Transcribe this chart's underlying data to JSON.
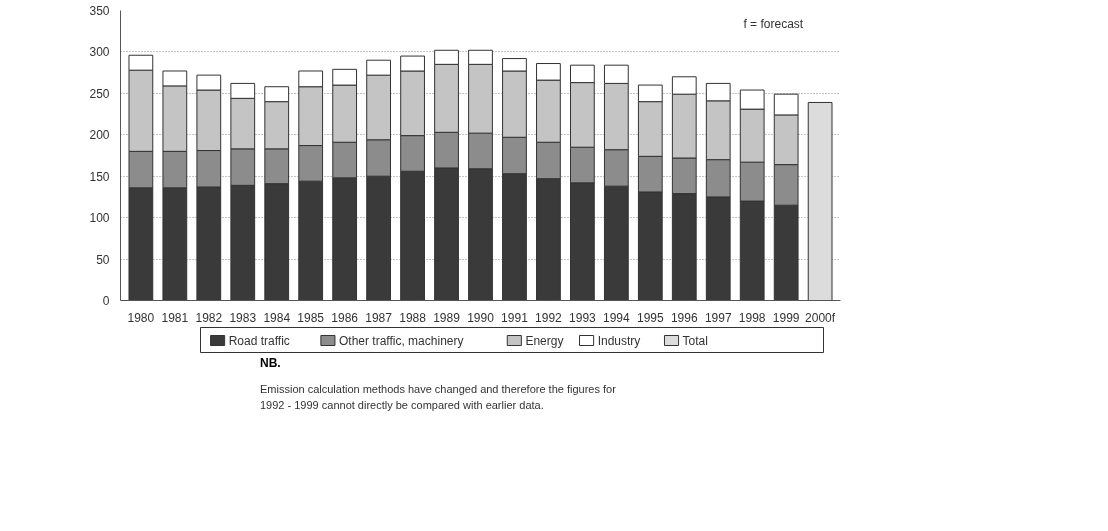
{
  "chart_data": {
    "type": "bar",
    "stacked": true,
    "categories": [
      "1980",
      "1981",
      "1982",
      "1983",
      "1984",
      "1985",
      "1986",
      "1987",
      "1988",
      "1989",
      "1990",
      "1991",
      "1992",
      "1993",
      "1994",
      "1995",
      "1996",
      "1997",
      "1998",
      "1999",
      "2000f"
    ],
    "series": [
      {
        "name": "Road traffic",
        "color": "#3a3a3a",
        "values": [
          136,
          136,
          137,
          139,
          141,
          144,
          148,
          150,
          156,
          160,
          159,
          153,
          147,
          142,
          138,
          131,
          129,
          125,
          120,
          115,
          null
        ]
      },
      {
        "name": "Other traffic, machinery",
        "color": "#8c8c8c",
        "values": [
          44,
          44,
          44,
          44,
          42,
          43,
          43,
          44,
          43,
          43,
          43,
          44,
          44,
          43,
          44,
          43,
          43,
          45,
          47,
          49,
          null
        ]
      },
      {
        "name": "Energy",
        "color": "#c4c4c4",
        "values": [
          98,
          79,
          73,
          61,
          57,
          71,
          69,
          78,
          78,
          82,
          83,
          80,
          75,
          78,
          80,
          66,
          77,
          71,
          64,
          60,
          null
        ]
      },
      {
        "name": "Industry",
        "color": "#ffffff",
        "values": [
          18,
          18,
          18,
          18,
          18,
          19,
          19,
          18,
          18,
          17,
          17,
          15,
          20,
          21,
          22,
          20,
          21,
          21,
          23,
          25,
          null
        ]
      },
      {
        "name": "Total",
        "color": "#dcdcdc",
        "values": [
          null,
          null,
          null,
          null,
          null,
          null,
          null,
          null,
          null,
          null,
          null,
          null,
          null,
          null,
          null,
          null,
          null,
          null,
          null,
          null,
          239
        ]
      }
    ],
    "ylim": [
      0,
      350
    ],
    "yticks": [
      0,
      50,
      100,
      150,
      200,
      250,
      300,
      350
    ],
    "grid": "y",
    "legend": "bottom",
    "annotations": [
      "f = forecast",
      "NB.",
      "Emission calculation methods have changed and therefore the figures for 1992 - 1999 cannot directly be compared with earlier data."
    ]
  }
}
